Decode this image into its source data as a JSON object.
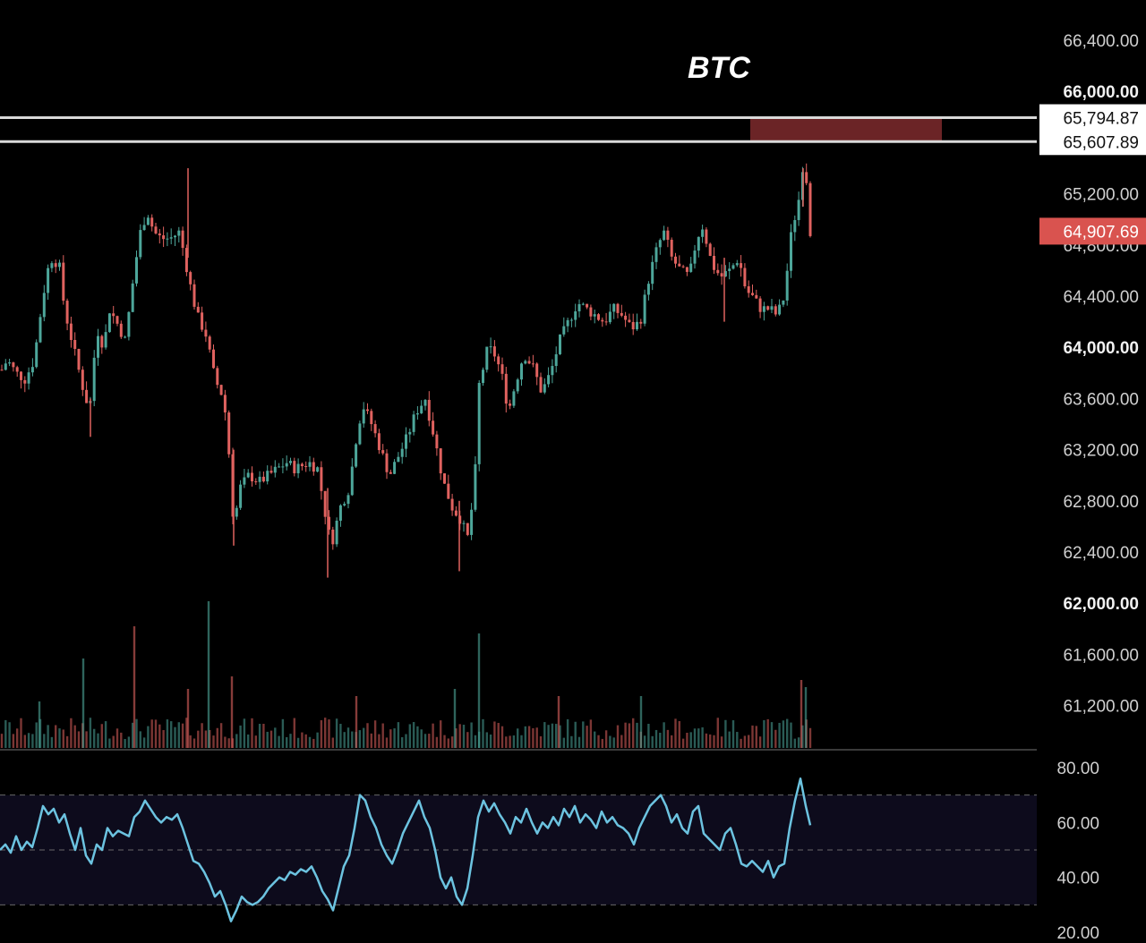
{
  "chart_data": [
    {
      "type": "candlestick",
      "title": "BTC",
      "ylim": [
        60900,
        66700
      ],
      "y_ticks": [
        {
          "label": "66,400.00",
          "value": 66400,
          "bold": false
        },
        {
          "label": "66,000.00",
          "value": 66000,
          "bold": true
        },
        {
          "label": "65,200.00",
          "value": 65200,
          "bold": false
        },
        {
          "label": "64,800.00",
          "value": 64800,
          "bold": false
        },
        {
          "label": "64,400.00",
          "value": 64400,
          "bold": false
        },
        {
          "label": "64,000.00",
          "value": 64000,
          "bold": true
        },
        {
          "label": "63,600.00",
          "value": 63600,
          "bold": false
        },
        {
          "label": "63,200.00",
          "value": 63200,
          "bold": false
        },
        {
          "label": "62,800.00",
          "value": 62800,
          "bold": false
        },
        {
          "label": "62,400.00",
          "value": 62400,
          "bold": false
        },
        {
          "label": "62,000.00",
          "value": 62000,
          "bold": true
        },
        {
          "label": "61,600.00",
          "value": 61600,
          "bold": false
        },
        {
          "label": "61,200.00",
          "value": 61200,
          "bold": false
        }
      ],
      "horizontal_levels": [
        {
          "label": "65,794.87",
          "value": 65794.87
        },
        {
          "label": "65,607.89",
          "value": 65607.89
        }
      ],
      "last_price": {
        "label": "64,907.69",
        "value": 64907.69
      },
      "resistance_zone": {
        "top": 65794.87,
        "bottom": 65607.89,
        "color": "#6b2426"
      },
      "price_anchors": [
        [
          0,
          63800
        ],
        [
          8,
          63900
        ],
        [
          18,
          63800
        ],
        [
          28,
          63750
        ],
        [
          38,
          63900
        ],
        [
          48,
          64400
        ],
        [
          56,
          64700
        ],
        [
          66,
          64650
        ],
        [
          72,
          64300
        ],
        [
          82,
          64000
        ],
        [
          92,
          63700
        ],
        [
          100,
          63500
        ],
        [
          108,
          64150
        ],
        [
          116,
          64000
        ],
        [
          122,
          64300
        ],
        [
          130,
          64200
        ],
        [
          140,
          64050
        ],
        [
          150,
          64600
        ],
        [
          158,
          64950
        ],
        [
          165,
          65050
        ],
        [
          172,
          64900
        ],
        [
          180,
          64850
        ],
        [
          190,
          64850
        ],
        [
          200,
          64900
        ],
        [
          205,
          64750
        ],
        [
          212,
          64500
        ],
        [
          220,
          64250
        ],
        [
          230,
          64100
        ],
        [
          240,
          63750
        ],
        [
          250,
          63600
        ],
        [
          256,
          63150
        ],
        [
          261,
          62600
        ],
        [
          268,
          62900
        ],
        [
          278,
          63000
        ],
        [
          290,
          62950
        ],
        [
          300,
          63000
        ],
        [
          310,
          63050
        ],
        [
          320,
          63100
        ],
        [
          330,
          63050
        ],
        [
          345,
          63100
        ],
        [
          355,
          63050
        ],
        [
          362,
          62750
        ],
        [
          370,
          62450
        ],
        [
          380,
          62750
        ],
        [
          390,
          62900
        ],
        [
          398,
          63300
        ],
        [
          405,
          63550
        ],
        [
          415,
          63400
        ],
        [
          425,
          63200
        ],
        [
          435,
          63000
        ],
        [
          445,
          63150
        ],
        [
          455,
          63300
        ],
        [
          465,
          63500
        ],
        [
          475,
          63600
        ],
        [
          485,
          63300
        ],
        [
          495,
          62950
        ],
        [
          505,
          62750
        ],
        [
          515,
          62650
        ],
        [
          522,
          62500
        ],
        [
          530,
          62900
        ],
        [
          535,
          63700
        ],
        [
          545,
          64000
        ],
        [
          552,
          63950
        ],
        [
          560,
          63800
        ],
        [
          568,
          63500
        ],
        [
          575,
          63700
        ],
        [
          585,
          63950
        ],
        [
          595,
          63850
        ],
        [
          605,
          63650
        ],
        [
          615,
          63800
        ],
        [
          625,
          64050
        ],
        [
          635,
          64200
        ],
        [
          645,
          64350
        ],
        [
          655,
          64300
        ],
        [
          665,
          64250
        ],
        [
          675,
          64200
        ],
        [
          685,
          64300
        ],
        [
          695,
          64250
        ],
        [
          705,
          64150
        ],
        [
          715,
          64200
        ],
        [
          725,
          64550
        ],
        [
          735,
          64800
        ],
        [
          742,
          64900
        ],
        [
          750,
          64700
        ],
        [
          760,
          64600
        ],
        [
          770,
          64550
        ],
        [
          778,
          64850
        ],
        [
          785,
          64950
        ],
        [
          795,
          64650
        ],
        [
          805,
          64550
        ],
        [
          815,
          64600
        ],
        [
          825,
          64700
        ],
        [
          833,
          64450
        ],
        [
          840,
          64400
        ],
        [
          850,
          64300
        ],
        [
          860,
          64300
        ],
        [
          868,
          64250
        ],
        [
          876,
          64400
        ],
        [
          884,
          64900
        ],
        [
          892,
          65150
        ],
        [
          897,
          65450
        ],
        [
          901,
          65300
        ],
        [
          905,
          64907.69
        ]
      ],
      "candle_x_start": 2,
      "candle_x_end": 905,
      "candle_spacing": 4.3,
      "wick_spikes": [
        {
          "x": 210,
          "high": 65400,
          "low": 64700
        },
        {
          "x": 261,
          "high": 63200,
          "low": 62450
        },
        {
          "x": 366,
          "high": 62900,
          "low": 62200
        },
        {
          "x": 513,
          "high": 62800,
          "low": 62250
        },
        {
          "x": 101,
          "high": 63600,
          "low": 63300
        },
        {
          "x": 809,
          "high": 64700,
          "low": 64200
        },
        {
          "x": 897,
          "high": 65400,
          "low": 65100
        }
      ],
      "up_color": "#4da69a",
      "down_color": "#e0625f",
      "volume_max_px_note": "",
      "volume_peaks": [
        {
          "x": 93,
          "h": 0.5
        },
        {
          "x": 150,
          "h": 0.68
        },
        {
          "x": 233,
          "h": 0.82
        },
        {
          "x": 259,
          "h": 0.4
        },
        {
          "x": 535,
          "h": 0.64
        },
        {
          "x": 895,
          "h": 0.38
        },
        {
          "x": 900,
          "h": 0.34
        },
        {
          "x": 210,
          "h": 0.33
        },
        {
          "x": 508,
          "h": 0.33
        },
        {
          "x": 398,
          "h": 0.29
        },
        {
          "x": 44,
          "h": 0.26
        },
        {
          "x": 624,
          "h": 0.29
        },
        {
          "x": 716,
          "h": 0.29
        }
      ]
    },
    {
      "type": "line",
      "series": [
        {
          "values": [
            [
              0,
              50
            ],
            [
              6,
              52
            ],
            [
              12,
              49
            ],
            [
              18,
              55
            ],
            [
              24,
              50
            ],
            [
              30,
              53
            ],
            [
              36,
              51
            ],
            [
              42,
              58
            ],
            [
              48,
              66
            ],
            [
              54,
              63
            ],
            [
              60,
              65
            ],
            [
              66,
              60
            ],
            [
              72,
              63
            ],
            [
              78,
              56
            ],
            [
              84,
              50
            ],
            [
              90,
              58
            ],
            [
              96,
              48
            ],
            [
              102,
              45
            ],
            [
              108,
              52
            ],
            [
              114,
              50
            ],
            [
              120,
              58
            ],
            [
              126,
              55
            ],
            [
              132,
              57
            ],
            [
              138,
              56
            ],
            [
              144,
              55
            ],
            [
              150,
              62
            ],
            [
              156,
              64
            ],
            [
              162,
              68
            ],
            [
              168,
              65
            ],
            [
              174,
              62
            ],
            [
              180,
              60
            ],
            [
              186,
              62
            ],
            [
              192,
              61
            ],
            [
              198,
              63
            ],
            [
              204,
              58
            ],
            [
              210,
              52
            ],
            [
              216,
              46
            ],
            [
              222,
              45
            ],
            [
              228,
              42
            ],
            [
              234,
              38
            ],
            [
              240,
              33
            ],
            [
              246,
              35
            ],
            [
              252,
              30
            ],
            [
              258,
              24
            ],
            [
              264,
              28
            ],
            [
              270,
              33
            ],
            [
              276,
              31
            ],
            [
              282,
              30
            ],
            [
              288,
              31
            ],
            [
              294,
              33
            ],
            [
              300,
              36
            ],
            [
              306,
              38
            ],
            [
              312,
              40
            ],
            [
              318,
              39
            ],
            [
              324,
              42
            ],
            [
              330,
              41
            ],
            [
              336,
              43
            ],
            [
              342,
              42
            ],
            [
              348,
              44
            ],
            [
              354,
              40
            ],
            [
              360,
              35
            ],
            [
              366,
              32
            ],
            [
              372,
              28
            ],
            [
              378,
              36
            ],
            [
              384,
              44
            ],
            [
              390,
              48
            ],
            [
              396,
              58
            ],
            [
              402,
              70
            ],
            [
              408,
              68
            ],
            [
              414,
              62
            ],
            [
              420,
              58
            ],
            [
              426,
              52
            ],
            [
              432,
              48
            ],
            [
              438,
              45
            ],
            [
              444,
              50
            ],
            [
              450,
              56
            ],
            [
              456,
              60
            ],
            [
              462,
              64
            ],
            [
              468,
              68
            ],
            [
              474,
              62
            ],
            [
              480,
              58
            ],
            [
              486,
              50
            ],
            [
              492,
              40
            ],
            [
              498,
              36
            ],
            [
              504,
              40
            ],
            [
              510,
              33
            ],
            [
              516,
              30
            ],
            [
              522,
              36
            ],
            [
              528,
              48
            ],
            [
              534,
              62
            ],
            [
              540,
              68
            ],
            [
              546,
              64
            ],
            [
              552,
              67
            ],
            [
              558,
              63
            ],
            [
              564,
              60
            ],
            [
              570,
              56
            ],
            [
              576,
              62
            ],
            [
              582,
              60
            ],
            [
              588,
              65
            ],
            [
              594,
              60
            ],
            [
              600,
              56
            ],
            [
              606,
              60
            ],
            [
              612,
              58
            ],
            [
              618,
              62
            ],
            [
              624,
              59
            ],
            [
              630,
              65
            ],
            [
              636,
              62
            ],
            [
              642,
              66
            ],
            [
              648,
              60
            ],
            [
              654,
              63
            ],
            [
              660,
              61
            ],
            [
              666,
              58
            ],
            [
              672,
              64
            ],
            [
              678,
              60
            ],
            [
              684,
              62
            ],
            [
              690,
              59
            ],
            [
              696,
              58
            ],
            [
              702,
              56
            ],
            [
              708,
              52
            ],
            [
              714,
              58
            ],
            [
              720,
              62
            ],
            [
              726,
              66
            ],
            [
              732,
              68
            ],
            [
              738,
              70
            ],
            [
              744,
              66
            ],
            [
              750,
              60
            ],
            [
              756,
              63
            ],
            [
              762,
              58
            ],
            [
              768,
              56
            ],
            [
              774,
              64
            ],
            [
              780,
              66
            ],
            [
              786,
              56
            ],
            [
              792,
              54
            ],
            [
              798,
              52
            ],
            [
              804,
              50
            ],
            [
              810,
              56
            ],
            [
              816,
              58
            ],
            [
              822,
              52
            ],
            [
              828,
              45
            ],
            [
              834,
              44
            ],
            [
              840,
              46
            ],
            [
              846,
              44
            ],
            [
              852,
              42
            ],
            [
              858,
              46
            ],
            [
              864,
              40
            ],
            [
              870,
              44
            ],
            [
              876,
              45
            ],
            [
              882,
              58
            ],
            [
              888,
              68
            ],
            [
              894,
              76
            ],
            [
              900,
              66
            ],
            [
              905,
              59
            ]
          ]
        }
      ],
      "color": "#6cc3e0",
      "ylim": [
        20,
        80
      ],
      "y_ticks": [
        {
          "label": "80.00",
          "value": 80
        },
        {
          "label": "60.00",
          "value": 60
        },
        {
          "label": "40.00",
          "value": 40
        },
        {
          "label": "20.00",
          "value": 20
        }
      ],
      "band": {
        "top": 70,
        "mid": 50,
        "bottom": 30
      }
    }
  ]
}
